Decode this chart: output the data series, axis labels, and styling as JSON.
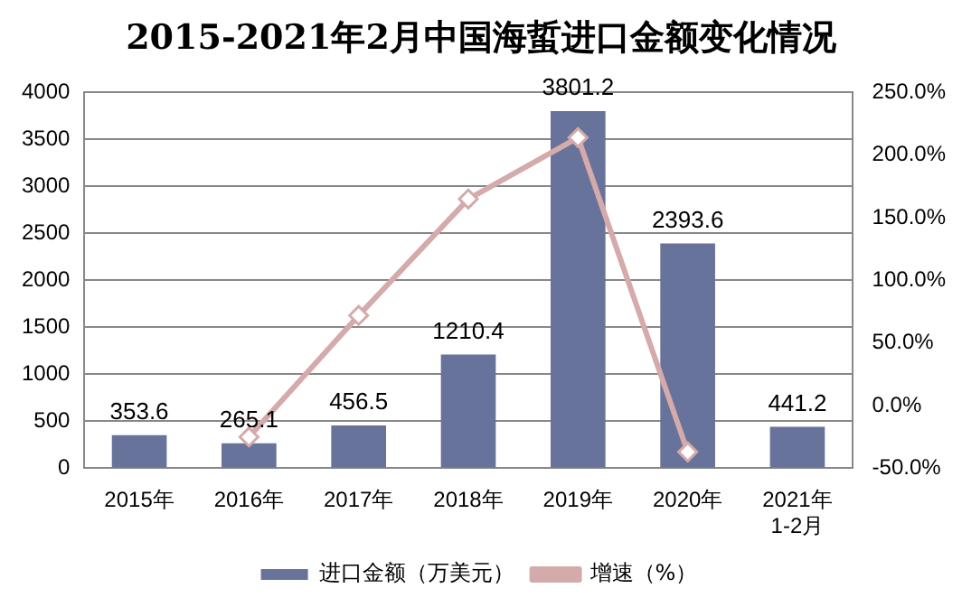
{
  "chart_data": {
    "type": "bar",
    "title": "2015-2021年2月中国海蜇进口金额变化情况",
    "categories": [
      "2015年",
      "2016年",
      "2017年",
      "2018年",
      "2019年",
      "2020年",
      "2021年1-2月"
    ],
    "series": [
      {
        "name": "进口金额（万美元）",
        "color": "#67739b",
        "values": [
          353.6,
          265.1,
          456.5,
          1210.4,
          3801.2,
          2393.6,
          441.2
        ],
        "value_labels": [
          "353.6",
          "265.1",
          "456.5",
          "1210.4",
          "3801.2",
          "2393.6",
          "441.2"
        ]
      },
      {
        "name": "增速（%）",
        "type": "line",
        "axis": "y2",
        "color": "#d4aaaa",
        "marker": "diamond",
        "values": [
          null,
          -25,
          72,
          165,
          214,
          -37,
          null
        ]
      }
    ],
    "ylim": [
      0,
      4000
    ],
    "yticks": [
      0,
      500,
      1000,
      1500,
      2000,
      2500,
      3000,
      3500,
      4000
    ],
    "y2lim": [
      -50,
      250
    ],
    "y2ticks": [
      {
        "value": -50,
        "label": "-50.0%"
      },
      {
        "value": 0,
        "label": "0.0%"
      },
      {
        "value": 50,
        "label": "50.0%"
      },
      {
        "value": 100,
        "label": "100.0%"
      },
      {
        "value": 150,
        "label": "150.0%"
      },
      {
        "value": 200,
        "label": "200.0%"
      },
      {
        "value": 250,
        "label": "250.0%"
      }
    ],
    "grid": "y",
    "legend": "bottom"
  }
}
